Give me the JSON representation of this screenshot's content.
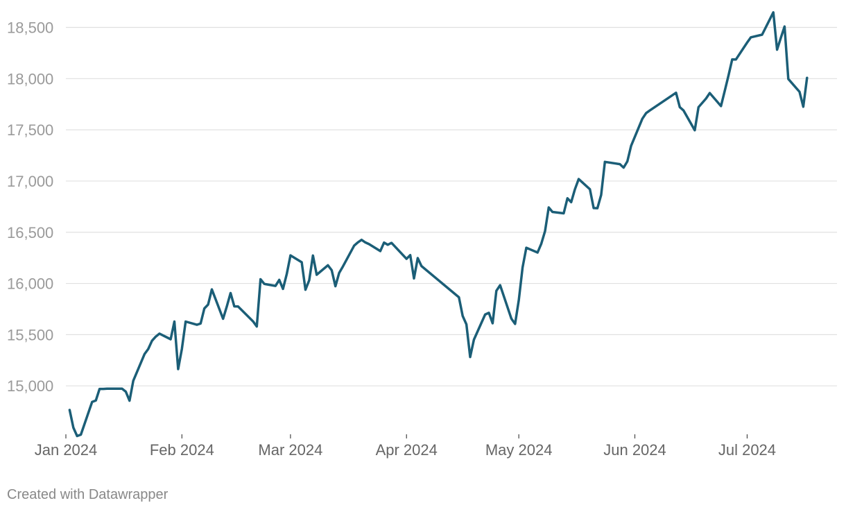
{
  "footer": {
    "credit": "Created with Datawrapper"
  },
  "colors": {
    "line": "#1b5e77",
    "grid": "#e0e0e0",
    "tick_text": "#9a9a9a"
  },
  "chart_data": {
    "type": "line",
    "title": "",
    "xlabel": "",
    "ylabel": "",
    "grid": true,
    "ylim": [
      14500,
      18700
    ],
    "y_ticks": [
      15000,
      15500,
      16000,
      16500,
      17000,
      17500,
      18000,
      18500
    ],
    "y_tick_labels": [
      "15,000",
      "15,500",
      "16,000",
      "16,500",
      "17,000",
      "17,500",
      "18,000",
      "18,500"
    ],
    "x_ticks": [
      "2024-01-01",
      "2024-02-01",
      "2024-03-01",
      "2024-04-01",
      "2024-05-01",
      "2024-06-01",
      "2024-07-01"
    ],
    "x_tick_labels": [
      "Jan 2024",
      "Feb 2024",
      "Mar 2024",
      "Apr 2024",
      "May 2024",
      "Jun 2024",
      "Jul 2024"
    ],
    "series": [
      {
        "color": "#1b5e77",
        "points": [
          [
            "2024-01-02",
            14765
          ],
          [
            "2024-01-03",
            14592
          ],
          [
            "2024-01-04",
            14510
          ],
          [
            "2024-01-05",
            14524
          ],
          [
            "2024-01-08",
            14843
          ],
          [
            "2024-01-09",
            14857
          ],
          [
            "2024-01-10",
            14970
          ],
          [
            "2024-01-11",
            14970
          ],
          [
            "2024-01-12",
            14973
          ],
          [
            "2024-01-16",
            14972
          ],
          [
            "2024-01-17",
            14944
          ],
          [
            "2024-01-18",
            14855
          ],
          [
            "2024-01-19",
            15050
          ],
          [
            "2024-01-22",
            15310
          ],
          [
            "2024-01-23",
            15360
          ],
          [
            "2024-01-24",
            15440
          ],
          [
            "2024-01-25",
            15481
          ],
          [
            "2024-01-26",
            15510
          ],
          [
            "2024-01-29",
            15455
          ],
          [
            "2024-01-30",
            15628
          ],
          [
            "2024-01-31",
            15164
          ],
          [
            "2024-02-01",
            15361
          ],
          [
            "2024-02-02",
            15628
          ],
          [
            "2024-02-05",
            15597
          ],
          [
            "2024-02-06",
            15609
          ],
          [
            "2024-02-07",
            15756
          ],
          [
            "2024-02-08",
            15794
          ],
          [
            "2024-02-09",
            15942
          ],
          [
            "2024-02-12",
            15655
          ],
          [
            "2024-02-13",
            15776
          ],
          [
            "2024-02-14",
            15906
          ],
          [
            "2024-02-15",
            15776
          ],
          [
            "2024-02-16",
            15775
          ],
          [
            "2024-02-20",
            15630
          ],
          [
            "2024-02-21",
            15580
          ],
          [
            "2024-02-22",
            16041
          ],
          [
            "2024-02-23",
            15996
          ],
          [
            "2024-02-26",
            15976
          ],
          [
            "2024-02-27",
            16035
          ],
          [
            "2024-02-28",
            15947
          ],
          [
            "2024-02-29",
            16091
          ],
          [
            "2024-03-01",
            16274
          ],
          [
            "2024-03-04",
            16207
          ],
          [
            "2024-03-05",
            15939
          ],
          [
            "2024-03-06",
            16031
          ],
          [
            "2024-03-07",
            16273
          ],
          [
            "2024-03-08",
            16085
          ],
          [
            "2024-03-11",
            16177
          ],
          [
            "2024-03-12",
            16130
          ],
          [
            "2024-03-13",
            15973
          ],
          [
            "2024-03-14",
            16103
          ],
          [
            "2024-03-15",
            16166
          ],
          [
            "2024-03-18",
            16369
          ],
          [
            "2024-03-19",
            16401
          ],
          [
            "2024-03-20",
            16426
          ],
          [
            "2024-03-21",
            16401
          ],
          [
            "2024-03-22",
            16384
          ],
          [
            "2024-03-25",
            16316
          ],
          [
            "2024-03-26",
            16399
          ],
          [
            "2024-03-27",
            16378
          ],
          [
            "2024-03-28",
            16396
          ],
          [
            "2024-04-01",
            16240
          ],
          [
            "2024-04-02",
            16277
          ],
          [
            "2024-04-03",
            16049
          ],
          [
            "2024-04-04",
            16248
          ],
          [
            "2024-04-05",
            16170
          ],
          [
            "2024-04-15",
            15865
          ],
          [
            "2024-04-16",
            15683
          ],
          [
            "2024-04-17",
            15601
          ],
          [
            "2024-04-18",
            15282
          ],
          [
            "2024-04-19",
            15451
          ],
          [
            "2024-04-22",
            15696
          ],
          [
            "2024-04-23",
            15713
          ],
          [
            "2024-04-24",
            15611
          ],
          [
            "2024-04-25",
            15928
          ],
          [
            "2024-04-26",
            15983
          ],
          [
            "2024-04-29",
            15657
          ],
          [
            "2024-04-30",
            15605
          ],
          [
            "2024-05-01",
            15840
          ],
          [
            "2024-05-02",
            16156
          ],
          [
            "2024-05-03",
            16349
          ],
          [
            "2024-05-06",
            16302
          ],
          [
            "2024-05-07",
            16388
          ],
          [
            "2024-05-08",
            16511
          ],
          [
            "2024-05-09",
            16742
          ],
          [
            "2024-05-10",
            16698
          ],
          [
            "2024-05-13",
            16685
          ],
          [
            "2024-05-14",
            16832
          ],
          [
            "2024-05-15",
            16794
          ],
          [
            "2024-05-16",
            16920
          ],
          [
            "2024-05-17",
            17019
          ],
          [
            "2024-05-20",
            16920
          ],
          [
            "2024-05-21",
            16736
          ],
          [
            "2024-05-22",
            16735
          ],
          [
            "2024-05-23",
            16864
          ],
          [
            "2024-05-24",
            17187
          ],
          [
            "2024-05-28",
            17165
          ],
          [
            "2024-05-29",
            17131
          ],
          [
            "2024-05-30",
            17192
          ],
          [
            "2024-05-31",
            17344
          ],
          [
            "2024-06-03",
            17608
          ],
          [
            "2024-06-04",
            17663
          ],
          [
            "2024-06-05",
            17689
          ],
          [
            "2024-06-12",
            17862
          ],
          [
            "2024-06-13",
            17722
          ],
          [
            "2024-06-14",
            17689
          ],
          [
            "2024-06-17",
            17496
          ],
          [
            "2024-06-18",
            17721
          ],
          [
            "2024-06-20",
            17805
          ],
          [
            "2024-06-21",
            17859
          ],
          [
            "2024-06-24",
            17732
          ],
          [
            "2024-06-25",
            17879
          ],
          [
            "2024-06-26",
            18029
          ],
          [
            "2024-06-27",
            18188
          ],
          [
            "2024-06-28",
            18187
          ],
          [
            "2024-07-01",
            18352
          ],
          [
            "2024-07-02",
            18403
          ],
          [
            "2024-07-05",
            18429
          ],
          [
            "2024-07-08",
            18647
          ],
          [
            "2024-07-09",
            18283
          ],
          [
            "2024-07-10",
            18398
          ],
          [
            "2024-07-11",
            18509
          ],
          [
            "2024-07-12",
            17997
          ],
          [
            "2024-07-15",
            17871
          ],
          [
            "2024-07-16",
            17726
          ],
          [
            "2024-07-17",
            18008
          ]
        ]
      }
    ]
  }
}
